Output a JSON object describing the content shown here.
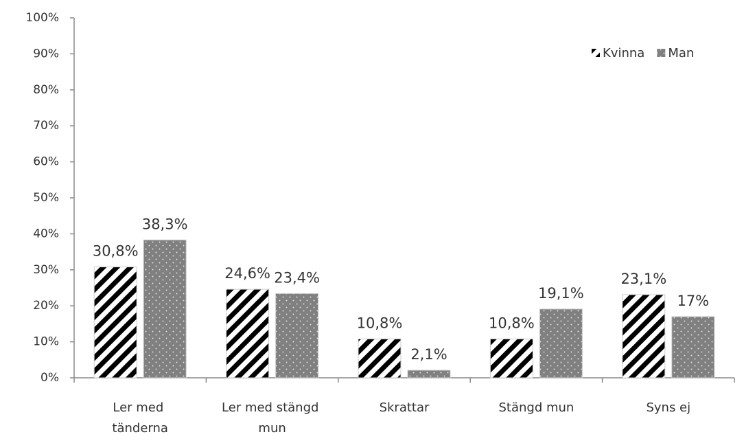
{
  "chart_data": {
    "type": "bar",
    "categories": [
      "Ler med tänderna",
      "Ler med stängd mun",
      "Skrattar",
      "Stängd mun",
      "Syns ej"
    ],
    "series": [
      {
        "name": "Kvinna",
        "color": "#000000",
        "values": [
          30.8,
          24.6,
          10.8,
          10.8,
          23.1
        ],
        "value_labels": [
          "30,8%",
          "24,6%",
          "10,8%",
          "10,8%",
          "23,1%"
        ]
      },
      {
        "name": "Man",
        "color": "#808080",
        "values": [
          38.3,
          23.4,
          2.1,
          19.1,
          17
        ],
        "value_labels": [
          "38,3%",
          "23,4%",
          "2,1%",
          "19,1%",
          "17%"
        ]
      }
    ],
    "ylim": [
      0,
      100
    ],
    "yticks": [
      {
        "value": 0,
        "label": "0%"
      },
      {
        "value": 10,
        "label": "10%"
      },
      {
        "value": 20,
        "label": "20%"
      },
      {
        "value": 30,
        "label": "30%"
      },
      {
        "value": 40,
        "label": "40%"
      },
      {
        "value": 50,
        "label": "50%"
      },
      {
        "value": 60,
        "label": "60%"
      },
      {
        "value": 70,
        "label": "70%"
      },
      {
        "value": 80,
        "label": "80%"
      },
      {
        "value": 90,
        "label": "90%"
      },
      {
        "value": 100,
        "label": "100%"
      }
    ],
    "legend": "top-right"
  }
}
